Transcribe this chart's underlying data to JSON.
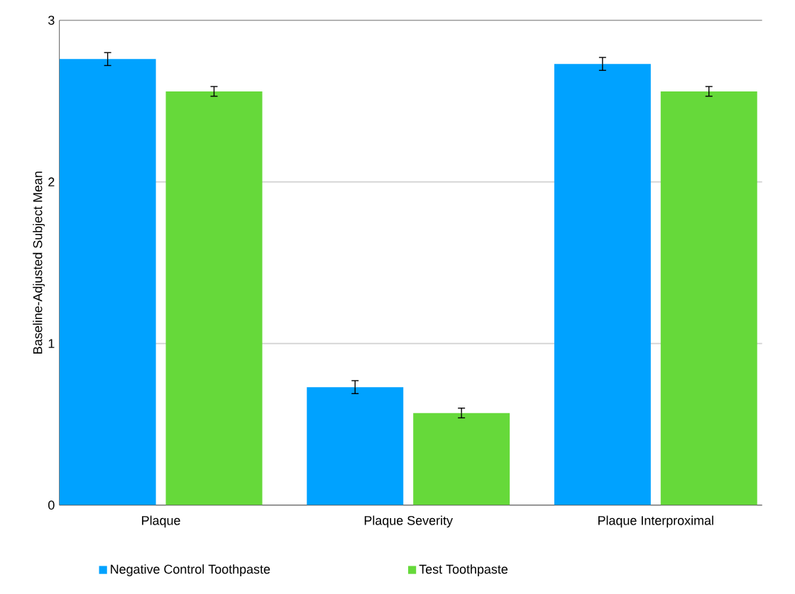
{
  "chart_data": {
    "type": "bar",
    "ylabel": "Baseline-Adjusted Subject Mean",
    "categories": [
      "Plaque",
      "Plaque Severity",
      "Plaque Interproximal"
    ],
    "series": [
      {
        "name": "Negative Control Toothpaste",
        "color": "#00a2ff",
        "values": [
          2.76,
          0.73,
          2.73
        ],
        "errors": [
          0.04,
          0.04,
          0.04
        ]
      },
      {
        "name": "Test Toothpaste",
        "color": "#66d93a",
        "values": [
          2.56,
          0.57,
          2.56
        ],
        "errors": [
          0.03,
          0.03,
          0.03
        ]
      }
    ],
    "ylim": [
      0,
      3
    ],
    "yticks": [
      0,
      1,
      2,
      3
    ],
    "grid": "y",
    "legend": "bottom"
  }
}
